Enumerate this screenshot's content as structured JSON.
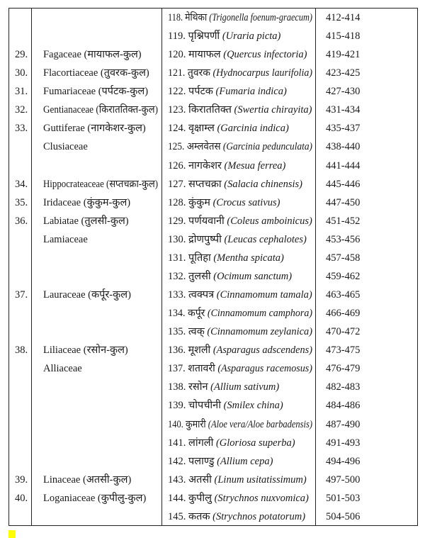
{
  "rows": [
    {
      "num": "",
      "family": "",
      "entry_no": "118.",
      "hindi": "मेथिका",
      "latin": "(Trigonella foenum-graecum)",
      "pages": "412-414"
    },
    {
      "num": "",
      "family": "",
      "entry_no": "119.",
      "hindi": "पृश्निपर्णी",
      "latin": "(Uraria picta)",
      "pages": "415-418"
    },
    {
      "num": "29.",
      "family": "Fagaceae (मायाफल-कुल)",
      "entry_no": "120.",
      "hindi": "मायाफल",
      "latin": "(Quercus infectoria)",
      "pages": "419-421"
    },
    {
      "num": "30.",
      "family": "Flacortiaceae (तुवरक-कुल)",
      "entry_no": "121.",
      "hindi": "तुवरक",
      "latin": "(Hydnocarpus laurifolia)",
      "pages": "423-425"
    },
    {
      "num": "31.",
      "family": "Fumariaceae (पर्पटक-कुल)",
      "entry_no": "122.",
      "hindi": "पर्पटक",
      "latin": "(Fumaria indica)",
      "pages": "427-430"
    },
    {
      "num": "32.",
      "family": "Gentianaceae (किराततिक्त-कुल)",
      "entry_no": "123.",
      "hindi": "किराततिक्त",
      "latin": "(Swertia chirayita)",
      "pages": "431-434"
    },
    {
      "num": "33.",
      "family": "Guttiferae (नागकेशर-कुल)",
      "entry_no": "124.",
      "hindi": "वृक्षाम्ल",
      "latin": "(Garcinia indica)",
      "pages": "435-437"
    },
    {
      "num": "",
      "family": "Clusiaceae",
      "entry_no": "125.",
      "hindi": "अम्लवेतस",
      "latin": "(Garcinia pedunculata)",
      "pages": "438-440"
    },
    {
      "num": "",
      "family": "",
      "entry_no": "126.",
      "hindi": "नागकेशर",
      "latin": "(Mesua ferrea)",
      "pages": "441-444"
    },
    {
      "num": "34.",
      "family": "Hippocrateaceae (सप्तचक्रा-कुल)",
      "entry_no": "127.",
      "hindi": "सप्तचक्रा",
      "latin": "(Salacia chinensis)",
      "pages": "445-446"
    },
    {
      "num": "35.",
      "family": "Iridaceae (कुंकुम-कुल)",
      "entry_no": "128.",
      "hindi": "कुंकुम",
      "latin": "(Crocus sativus)",
      "pages": "447-450"
    },
    {
      "num": "36.",
      "family": "Labiatae (तुलसी-कुल)",
      "entry_no": "129.",
      "hindi": "पर्णयवानी",
      "latin": "(Coleus amboinicus)",
      "pages": "451-452"
    },
    {
      "num": "",
      "family": "Lamiaceae",
      "entry_no": "130.",
      "hindi": "द्रोणपुष्पी",
      "latin": "(Leucas cephalotes)",
      "pages": "453-456"
    },
    {
      "num": "",
      "family": "",
      "entry_no": "131.",
      "hindi": "पूतिहा",
      "latin": "(Mentha spicata)",
      "pages": "457-458"
    },
    {
      "num": "",
      "family": "",
      "entry_no": "132.",
      "hindi": "तुलसी",
      "latin": "(Ocimum sanctum)",
      "pages": "459-462"
    },
    {
      "num": "37.",
      "family": "Lauraceae (कर्पूर-कुल)",
      "entry_no": "133.",
      "hindi": "त्वक्पत्र",
      "latin": "(Cinnamomum tamala)",
      "pages": "463-465"
    },
    {
      "num": "",
      "family": "",
      "entry_no": "134.",
      "hindi": "कर्पूर",
      "latin": "(Cinnamomum camphora)",
      "pages": "466-469"
    },
    {
      "num": "",
      "family": "",
      "entry_no": "135.",
      "hindi": "त्वक्",
      "latin": "(Cinnamomum zeylanica)",
      "pages": "470-472"
    },
    {
      "num": "38.",
      "family": "Liliaceae (रसोन-कुल)",
      "entry_no": "136.",
      "hindi": "मूशली",
      "latin": "(Asparagus adscendens)",
      "pages": "473-475"
    },
    {
      "num": "",
      "family": "Alliaceae",
      "entry_no": "137.",
      "hindi": "शतावरी",
      "latin": "(Asparagus racemosus)",
      "pages": "476-479"
    },
    {
      "num": "",
      "family": "",
      "entry_no": "138.",
      "hindi": "रसोन",
      "latin": "(Allium sativum)",
      "pages": "482-483"
    },
    {
      "num": "",
      "family": "",
      "entry_no": "139.",
      "hindi": "चोपचीनी",
      "latin": "(Smilex china)",
      "pages": "484-486"
    },
    {
      "num": "",
      "family": "",
      "entry_no": "140.",
      "hindi": "कुमारी",
      "latin": "(Aloe vera/Aloe barbadensis)",
      "pages": "487-490"
    },
    {
      "num": "",
      "family": "",
      "entry_no": "141.",
      "hindi": "लांगली",
      "latin": "(Gloriosa superba)",
      "pages": "491-493"
    },
    {
      "num": "",
      "family": "",
      "entry_no": "142.",
      "hindi": "पलाण्डु",
      "latin": "(Allium cepa)",
      "pages": "494-496"
    },
    {
      "num": "39.",
      "family": "Linaceae (अतसी-कुल)",
      "entry_no": "143.",
      "hindi": "अतसी",
      "latin": "(Linum usitatissimum)",
      "pages": "497-500"
    },
    {
      "num": "40.",
      "family": "Loganiaceae (कुपीलु-कुल)",
      "entry_no": "144.",
      "hindi": "कुपीलु",
      "latin": "(Strychnos nuxvomica)",
      "pages": "501-503"
    },
    {
      "num": "",
      "family": "",
      "entry_no": "145.",
      "hindi": "कतक",
      "latin": "(Strychnos potatorum)",
      "pages": "504-506"
    }
  ],
  "colors": {
    "border": "#222222",
    "text": "#1a1a1a",
    "highlight": "#ffff00"
  }
}
